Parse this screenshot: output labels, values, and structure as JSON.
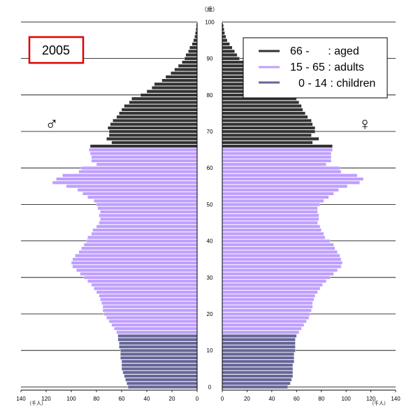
{
  "year_box": {
    "label": "2005"
  },
  "y_unit": "（歳）",
  "x_unit": "（千人）",
  "male_symbol": "♂",
  "female_symbol": "♀",
  "legend": [
    {
      "label": "66 -      : aged",
      "color": "#333333"
    },
    {
      "label": "15 - 65 : adults",
      "color": "#bf9fff"
    },
    {
      "label": "0 - 14 : children",
      "color": "#666699"
    }
  ],
  "chart_data": {
    "type": "bar",
    "orientation": "horizontal-population-pyramid",
    "ages": [
      0,
      1,
      2,
      3,
      4,
      5,
      6,
      7,
      8,
      9,
      10,
      11,
      12,
      13,
      14,
      15,
      16,
      17,
      18,
      19,
      20,
      21,
      22,
      23,
      24,
      25,
      26,
      27,
      28,
      29,
      30,
      31,
      32,
      33,
      34,
      35,
      36,
      37,
      38,
      39,
      40,
      41,
      42,
      43,
      44,
      45,
      46,
      47,
      48,
      49,
      50,
      51,
      52,
      53,
      54,
      55,
      56,
      57,
      58,
      59,
      60,
      61,
      62,
      63,
      64,
      65,
      66,
      67,
      68,
      69,
      70,
      71,
      72,
      73,
      74,
      75,
      76,
      77,
      78,
      79,
      80,
      81,
      82,
      83,
      84,
      85,
      86,
      87,
      88,
      89,
      90,
      91,
      92,
      93,
      94,
      95,
      96,
      97,
      98,
      99,
      100
    ],
    "series": [
      {
        "name": "♂",
        "values": [
          55,
          56,
          57,
          58,
          59,
          60,
          60,
          60,
          61,
          61,
          61,
          62,
          62,
          63,
          63,
          64,
          66,
          68,
          70,
          72,
          74,
          75,
          75,
          76,
          77,
          78,
          80,
          82,
          84,
          87,
          90,
          93,
          96,
          99,
          100,
          99,
          97,
          94,
          92,
          90,
          88,
          87,
          84,
          83,
          80,
          78,
          77,
          78,
          77,
          79,
          80,
          82,
          87,
          91,
          95,
          104,
          115,
          112,
          107,
          94,
          92,
          80,
          84,
          84,
          85,
          86,
          85,
          68,
          72,
          70,
          70,
          71,
          69,
          67,
          64,
          62,
          60,
          58,
          54,
          52,
          45,
          40,
          36,
          34,
          28,
          25,
          21,
          18,
          15,
          12,
          10,
          9,
          7,
          6,
          4,
          3,
          2,
          1.5,
          1,
          0.6,
          0.3
        ]
      },
      {
        "name": "♀",
        "values": [
          53,
          55,
          56,
          57,
          57,
          57,
          57,
          58,
          58,
          58,
          59,
          59,
          59,
          59,
          60,
          62,
          64,
          66,
          68,
          70,
          71,
          72,
          73,
          73,
          74,
          75,
          77,
          79,
          81,
          84,
          87,
          90,
          93,
          96,
          97,
          96,
          95,
          93,
          91,
          90,
          87,
          83,
          82,
          80,
          79,
          77,
          78,
          78,
          77,
          77,
          79,
          82,
          86,
          90,
          94,
          101,
          111,
          114,
          109,
          96,
          95,
          84,
          88,
          88,
          88,
          89,
          89,
          73,
          78,
          72,
          75,
          75,
          73,
          72,
          69,
          67,
          65,
          64,
          62,
          60,
          55,
          48,
          45,
          42,
          35,
          32,
          28,
          25,
          21,
          18,
          14,
          12,
          10,
          8,
          6,
          4,
          3,
          2,
          1.5,
          1,
          0.5
        ]
      }
    ],
    "xlim": [
      0,
      140
    ],
    "ylim": [
      0,
      100
    ],
    "x_ticks": [
      0,
      20,
      40,
      60,
      80,
      100,
      120,
      140
    ],
    "y_ticks": [
      0,
      10,
      20,
      30,
      40,
      50,
      60,
      70,
      80,
      90,
      100
    ],
    "groups": [
      {
        "label": "0 - 14 : children",
        "from": 0,
        "to": 14,
        "color": "#666699"
      },
      {
        "label": "15 - 65 : adults",
        "from": 15,
        "to": 65,
        "color": "#bf9fff"
      },
      {
        "label": "66 -      : aged",
        "from": 66,
        "to": 100,
        "color": "#333333"
      }
    ]
  }
}
